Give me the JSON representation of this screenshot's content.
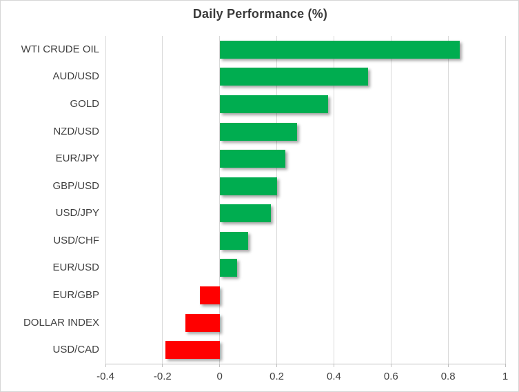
{
  "chart": {
    "title": "Daily Performance (%)"
  },
  "chart_data": {
    "type": "bar",
    "orientation": "horizontal",
    "title": "Daily Performance (%)",
    "xlabel": "",
    "ylabel": "",
    "categories": [
      "WTI CRUDE OIL",
      "AUD/USD",
      "GOLD",
      "NZD/USD",
      "EUR/JPY",
      "GBP/USD",
      "USD/JPY",
      "USD/CHF",
      "EUR/USD",
      "EUR/GBP",
      "DOLLAR INDEX",
      "USD/CAD"
    ],
    "values": [
      0.84,
      0.52,
      0.38,
      0.27,
      0.23,
      0.2,
      0.18,
      0.1,
      0.06,
      -0.07,
      -0.12,
      -0.19
    ],
    "xlim": [
      -0.4,
      1.0
    ],
    "xticks": [
      -0.4,
      -0.2,
      0,
      0.2,
      0.4,
      0.6,
      0.8,
      1
    ],
    "xtick_labels": [
      "-0.4",
      "-0.2",
      "0",
      "0.2",
      "0.4",
      "0.6",
      "0.8",
      "1"
    ],
    "grid": true,
    "legend": false,
    "colors": {
      "positive_bar": "#00AD50",
      "negative_bar": "#FF0000",
      "gridline": "#D9D9D9",
      "axis_line": "#BFBFBF",
      "title_text": "#3A3A3A",
      "label_text": "#404040"
    }
  }
}
